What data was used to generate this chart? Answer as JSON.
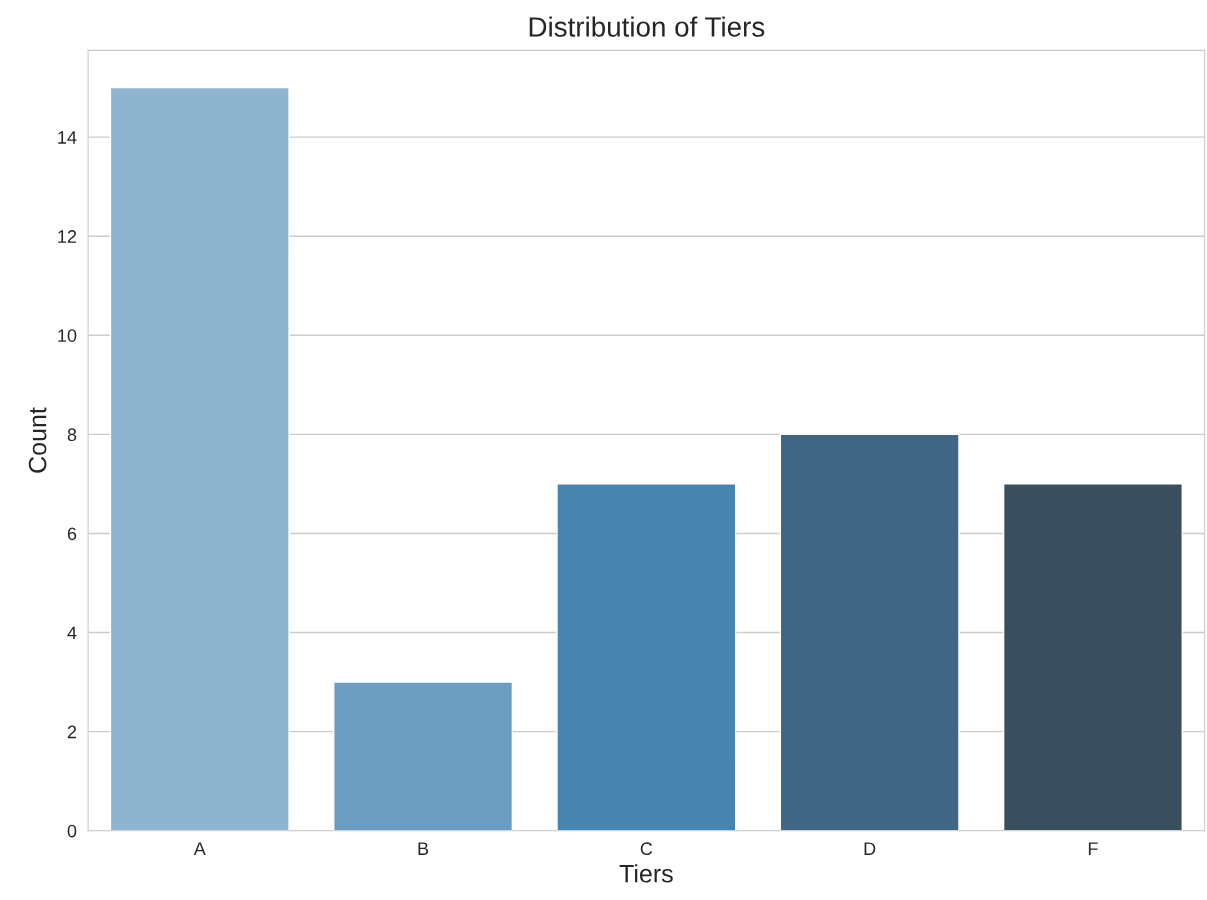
{
  "chart_data": {
    "type": "bar",
    "title": "Distribution of Tiers",
    "xlabel": "Tiers",
    "ylabel": "Count",
    "categories": [
      "A",
      "B",
      "C",
      "D",
      "F"
    ],
    "values": [
      15,
      3,
      7,
      8,
      7
    ],
    "colors": [
      "#8fb4cf",
      "#6a9dc0",
      "#4884b0",
      "#3f6784",
      "#3a4f5e"
    ],
    "ylim": [
      0,
      15.75
    ],
    "yticks": [
      0,
      2,
      4,
      6,
      8,
      10,
      12,
      14
    ],
    "grid": "y",
    "legend": false
  }
}
